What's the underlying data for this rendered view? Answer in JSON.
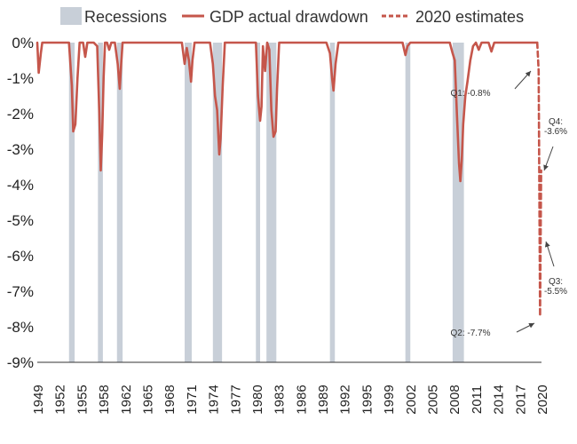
{
  "chart_data": {
    "type": "area",
    "title": "",
    "xlabel": "",
    "ylabel": "",
    "xlim": [
      1949,
      2020.5
    ],
    "ylim": [
      -9,
      0
    ],
    "y_ticks": [
      0,
      -1,
      -2,
      -3,
      -4,
      -5,
      -6,
      -7,
      -8,
      -9
    ],
    "y_tick_labels": [
      "0%",
      "-1%",
      "-2%",
      "-3%",
      "-4%",
      "-5%",
      "-6%",
      "-7%",
      "-8%",
      "-9%"
    ],
    "x_tick_labels": [
      "1949",
      "1952",
      "1955",
      "1958",
      "1962",
      "1965",
      "1968",
      "1971",
      "1974",
      "1977",
      "1980",
      "1983",
      "1986",
      "1989",
      "1992",
      "1995",
      "1999",
      "2002",
      "2005",
      "2008",
      "2011",
      "2014",
      "2017",
      "2020"
    ],
    "legend": {
      "position": "top",
      "entries": [
        {
          "label": "Recessions",
          "style": "bar",
          "color": "#c8cfd8"
        },
        {
          "label": "GDP actual drawdown",
          "style": "line",
          "color": "#c5564b"
        },
        {
          "label": "2020 estimates",
          "style": "dashed",
          "color": "#c5564b"
        }
      ]
    },
    "recessions": [
      {
        "start": 1953.5,
        "end": 1954.3
      },
      {
        "start": 1957.6,
        "end": 1958.3
      },
      {
        "start": 1960.3,
        "end": 1961.1
      },
      {
        "start": 1969.9,
        "end": 1970.9
      },
      {
        "start": 1973.9,
        "end": 1975.2
      },
      {
        "start": 1980.0,
        "end": 1980.6
      },
      {
        "start": 1981.5,
        "end": 1982.9
      },
      {
        "start": 1990.5,
        "end": 1991.2
      },
      {
        "start": 2001.2,
        "end": 2001.9
      },
      {
        "start": 2007.9,
        "end": 2009.5
      }
    ],
    "series": [
      {
        "name": "GDP actual drawdown",
        "color": "#c5564b",
        "x": [
          1949.0,
          1949.2,
          1949.5,
          1949.7,
          1950.0,
          1953.5,
          1953.9,
          1954.1,
          1954.4,
          1954.7,
          1955.0,
          1955.5,
          1955.8,
          1956.1,
          1956.5,
          1957.0,
          1957.5,
          1957.8,
          1958.0,
          1958.2,
          1958.4,
          1958.6,
          1958.9,
          1959.2,
          1959.5,
          1960.0,
          1960.4,
          1960.7,
          1960.9,
          1961.1,
          1961.5,
          1962.0,
          1969.5,
          1969.9,
          1970.2,
          1970.5,
          1970.8,
          1971.0,
          1971.3,
          1973.5,
          1973.9,
          1974.2,
          1974.5,
          1974.8,
          1975.0,
          1975.3,
          1975.6,
          1976.0,
          1979.5,
          1980.0,
          1980.3,
          1980.6,
          1980.8,
          1981.0,
          1981.3,
          1981.6,
          1981.9,
          1982.2,
          1982.5,
          1982.8,
          1983.0,
          1983.3,
          1990.0,
          1990.5,
          1990.8,
          1991.0,
          1991.3,
          1991.7,
          2000.8,
          2001.2,
          2001.5,
          2001.9,
          2002.3,
          2007.5,
          2007.9,
          2008.2,
          2008.5,
          2008.8,
          2009.0,
          2009.2,
          2009.4,
          2009.7,
          2010.0,
          2010.4,
          2010.8,
          2011.2,
          2011.6,
          2012.0,
          2013.0,
          2013.4,
          2013.8,
          2014.3,
          2019.9
        ],
        "y": [
          0,
          -0.85,
          -0.3,
          0,
          0,
          0,
          -1.2,
          -2.5,
          -2.3,
          -1.0,
          0,
          0,
          -0.4,
          0,
          0,
          0,
          -0.1,
          -2.0,
          -3.6,
          -2.6,
          -1.0,
          0,
          0,
          -0.2,
          0,
          0,
          -0.6,
          -1.3,
          -0.6,
          0,
          0,
          0,
          0,
          -0.6,
          -0.15,
          -0.5,
          -1.1,
          -0.5,
          0,
          0,
          -0.6,
          -1.5,
          -1.9,
          -3.15,
          -2.7,
          -1.2,
          0,
          0,
          0,
          0,
          -1.5,
          -2.2,
          -1.8,
          -0.1,
          -0.8,
          0,
          -0.2,
          -1.9,
          -2.65,
          -2.5,
          -1.3,
          0,
          0,
          -0.3,
          -1.0,
          -1.35,
          -0.6,
          0,
          0,
          -0.35,
          -0.1,
          0,
          0,
          0,
          -0.3,
          -0.5,
          -2.0,
          -3.4,
          -3.9,
          -3.3,
          -2.3,
          -1.5,
          -1.1,
          -0.5,
          -0.1,
          0,
          -0.2,
          0,
          0,
          -0.25,
          0,
          0,
          0
        ]
      },
      {
        "name": "2020 estimates",
        "color": "#c5564b",
        "dashed": true,
        "x": [
          2019.9,
          2020.1,
          2020.3,
          2020.45
        ],
        "y": [
          0,
          -0.8,
          -7.7,
          -3.6
        ]
      }
    ],
    "annotations": [
      {
        "text": "Q1: -0.8%",
        "x": 2020.1,
        "y": -0.8
      },
      {
        "text": "Q2: -7.7%",
        "x": 2020.3,
        "y": -7.7
      },
      {
        "text": "Q3: -5.5%",
        "x": 2020.35,
        "y": -5.5
      },
      {
        "text": "Q4: -3.6%",
        "x": 2020.45,
        "y": -3.6
      }
    ]
  }
}
